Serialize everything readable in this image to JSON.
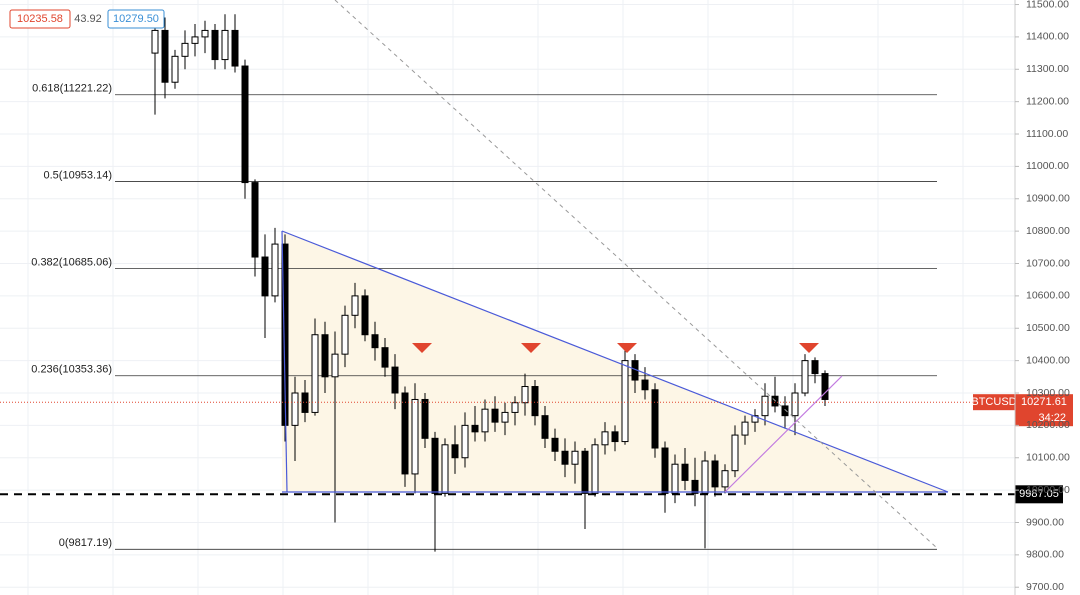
{
  "chart_data": {
    "type": "candlestick",
    "ylim": [
      9676,
      11514
    ],
    "yticks": [
      {
        "value": 9700,
        "label": "9700.00"
      },
      {
        "value": 9800,
        "label": "9800.00"
      },
      {
        "value": 9900,
        "label": "9900.00"
      },
      {
        "value": 10000,
        "label": "10000.00"
      },
      {
        "value": 10100,
        "label": "10100.00"
      },
      {
        "value": 10200,
        "label": "10200.00"
      },
      {
        "value": 10300,
        "label": "10300.00"
      },
      {
        "value": 10400,
        "label": "10400.00"
      },
      {
        "value": 10500,
        "label": "10500.00"
      },
      {
        "value": 10600,
        "label": "10600.00"
      },
      {
        "value": 10700,
        "label": "10700.00"
      },
      {
        "value": 10800,
        "label": "10800.00"
      },
      {
        "value": 10900,
        "label": "10900.00"
      },
      {
        "value": 11000,
        "label": "11000.00"
      },
      {
        "value": 11100,
        "label": "11100.00"
      },
      {
        "value": 11200,
        "label": "11200.00"
      },
      {
        "value": 11300,
        "label": "11300.00"
      },
      {
        "value": 11400,
        "label": "11400.00"
      },
      {
        "value": 11500,
        "label": "11500.00"
      }
    ],
    "grid": true,
    "up_color": "#ffffff",
    "down_color": "#000000",
    "ohlc": [
      [
        11350,
        11450,
        11160,
        11420
      ],
      [
        11420,
        11460,
        11210,
        11260
      ],
      [
        11260,
        11360,
        11240,
        11340
      ],
      [
        11340,
        11420,
        11300,
        11380
      ],
      [
        11380,
        11440,
        11340,
        11400
      ],
      [
        11400,
        11450,
        11350,
        11420
      ],
      [
        11420,
        11440,
        11300,
        11330
      ],
      [
        11330,
        11470,
        11300,
        11420
      ],
      [
        11420,
        11470,
        11290,
        11310
      ],
      [
        11310,
        11330,
        10900,
        10950
      ],
      [
        10950,
        10960,
        10660,
        10720
      ],
      [
        10720,
        10790,
        10470,
        10600
      ],
      [
        10600,
        10810,
        10580,
        10760
      ],
      [
        10760,
        10790,
        10150,
        10200
      ],
      [
        10200,
        10350,
        10090,
        10300
      ],
      [
        10300,
        10340,
        10210,
        10240
      ],
      [
        10240,
        10530,
        10230,
        10480
      ],
      [
        10480,
        10520,
        10300,
        10350
      ],
      [
        10350,
        10490,
        9900,
        10420
      ],
      [
        10420,
        10570,
        10380,
        10540
      ],
      [
        10540,
        10640,
        10500,
        10600
      ],
      [
        10600,
        10620,
        10460,
        10480
      ],
      [
        10480,
        10520,
        10400,
        10440
      ],
      [
        10440,
        10470,
        10350,
        10380
      ],
      [
        10380,
        10420,
        10250,
        10300
      ],
      [
        10300,
        10320,
        10010,
        10050
      ],
      [
        10050,
        10330,
        9990,
        10280
      ],
      [
        10280,
        10300,
        10130,
        10160
      ],
      [
        10160,
        10180,
        9810,
        9990
      ],
      [
        9990,
        10160,
        9980,
        10140
      ],
      [
        10140,
        10200,
        10050,
        10100
      ],
      [
        10100,
        10240,
        10070,
        10200
      ],
      [
        10200,
        10260,
        10150,
        10180
      ],
      [
        10180,
        10280,
        10150,
        10250
      ],
      [
        10250,
        10290,
        10180,
        10210
      ],
      [
        10210,
        10270,
        10170,
        10240
      ],
      [
        10240,
        10290,
        10200,
        10270
      ],
      [
        10270,
        10360,
        10230,
        10320
      ],
      [
        10320,
        10340,
        10200,
        10230
      ],
      [
        10230,
        10260,
        10130,
        10160
      ],
      [
        10160,
        10190,
        10090,
        10120
      ],
      [
        10120,
        10160,
        10040,
        10080
      ],
      [
        10080,
        10150,
        10020,
        10120
      ],
      [
        10120,
        10130,
        9880,
        9990
      ],
      [
        9990,
        10160,
        9980,
        10140
      ],
      [
        10140,
        10210,
        10110,
        10180
      ],
      [
        10180,
        10200,
        10120,
        10150
      ],
      [
        10150,
        10440,
        10140,
        10400
      ],
      [
        10400,
        10420,
        10300,
        10340
      ],
      [
        10340,
        10380,
        10280,
        10310
      ],
      [
        10310,
        10330,
        10100,
        10130
      ],
      [
        10130,
        10150,
        9930,
        9990
      ],
      [
        9990,
        10110,
        9960,
        10080
      ],
      [
        10080,
        10130,
        10000,
        10030
      ],
      [
        10030,
        10100,
        9950,
        9990
      ],
      [
        9990,
        10120,
        9820,
        10090
      ],
      [
        10090,
        10110,
        9980,
        10010
      ],
      [
        10010,
        10080,
        9990,
        10060
      ],
      [
        10060,
        10200,
        10040,
        10170
      ],
      [
        10170,
        10230,
        10140,
        10210
      ],
      [
        10210,
        10250,
        10180,
        10230
      ],
      [
        10230,
        10330,
        10200,
        10290
      ],
      [
        10290,
        10350,
        10240,
        10260
      ],
      [
        10260,
        10290,
        10190,
        10230
      ],
      [
        10230,
        10330,
        10170,
        10300
      ],
      [
        10300,
        10420,
        10290,
        10400
      ],
      [
        10400,
        10410,
        10330,
        10360
      ],
      [
        10360,
        10370,
        10260,
        10280
      ]
    ],
    "fib_levels": [
      {
        "value": 11221.22,
        "label": "0.618(11221.22)"
      },
      {
        "value": 10953.14,
        "label": "0.5(10953.14)"
      },
      {
        "value": 10685.06,
        "label": "0.382(10685.06)"
      },
      {
        "value": 10353.36,
        "label": "0.236(10353.36)"
      },
      {
        "value": 9817.19,
        "label": "0(9817.19)"
      }
    ],
    "support": 9987.05,
    "last_price": 10271.61,
    "symbol": "BTCUSD",
    "countdown": "34:22",
    "bid": 10235.58,
    "spread": 43.92,
    "ask": {
      "value": 10279.5,
      "label": "10279.50"
    }
  }
}
